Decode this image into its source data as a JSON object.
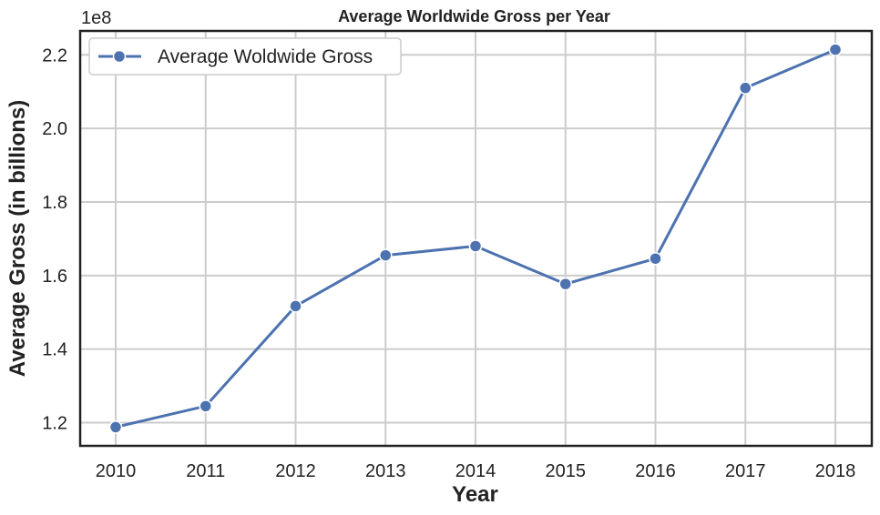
{
  "chart_data": {
    "type": "line",
    "title": "Average Worldwide Gross per Year",
    "xlabel": "Year",
    "ylabel": "Average Gross (in billions)",
    "y_offset_label": "1e8",
    "x": [
      "2010",
      "2011",
      "2012",
      "2013",
      "2014",
      "2015",
      "2016",
      "2017",
      "2018"
    ],
    "series": [
      {
        "name": "Average Woldwide Gross",
        "values": [
          118800000,
          124500000,
          151700000,
          165500000,
          168000000,
          157700000,
          164600000,
          211000000,
          221400000
        ],
        "color": "#4c72b0",
        "marker": "circle"
      }
    ],
    "yticks": [
      "1.2",
      "1.4",
      "1.6",
      "1.8",
      "2.0",
      "2.2"
    ],
    "ytick_values": [
      120000000,
      140000000,
      160000000,
      180000000,
      200000000,
      220000000
    ],
    "ylim": [
      113700000,
      226500000
    ],
    "grid": true,
    "legend_position": "top-left",
    "colors": {
      "line": "#4c72b0",
      "grid": "#cccccc",
      "axes": "#222222"
    }
  }
}
